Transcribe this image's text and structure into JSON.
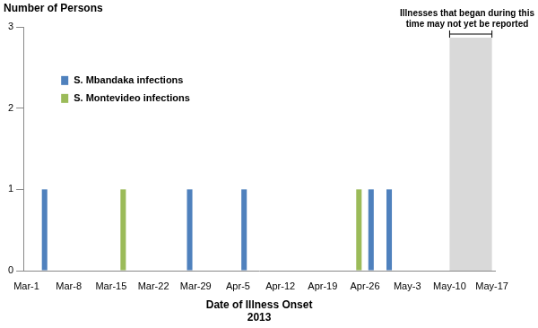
{
  "chart_data": {
    "type": "bar",
    "y_label": "Number of Persons",
    "x_label": "Date of Illness Onset\n2013",
    "categories": [
      "Mar-1",
      null,
      null,
      null,
      null,
      null,
      null,
      "Mar-8",
      null,
      null,
      null,
      null,
      null,
      null,
      "Mar-15",
      null,
      null,
      null,
      null,
      null,
      null,
      "Mar-22",
      null,
      null,
      null,
      null,
      null,
      null,
      "Mar-29",
      null,
      null,
      null,
      null,
      null,
      null,
      "Apr-5",
      null,
      null,
      null,
      null,
      null,
      null,
      "Apr-12",
      null,
      null,
      null,
      null,
      null,
      null,
      "Apr-19",
      null,
      null,
      null,
      null,
      null,
      null,
      "Apr-26",
      null,
      null,
      null,
      null,
      null,
      null,
      "May-3",
      null,
      null,
      null,
      null,
      null,
      null,
      "May-10",
      null,
      null,
      null,
      null,
      null,
      null,
      "May-17"
    ],
    "series": [
      {
        "name": "S. Mbandaka infections",
        "color": "#4f81bd",
        "values": [
          0,
          0,
          0,
          1,
          0,
          0,
          0,
          0,
          0,
          0,
          0,
          0,
          0,
          0,
          0,
          0,
          0,
          0,
          0,
          0,
          0,
          0,
          0,
          0,
          0,
          0,
          0,
          1,
          0,
          0,
          0,
          0,
          0,
          0,
          0,
          0,
          1,
          0,
          0,
          0,
          0,
          0,
          0,
          0,
          0,
          0,
          0,
          0,
          0,
          0,
          0,
          0,
          0,
          0,
          0,
          0,
          0,
          1,
          0,
          0,
          1,
          0,
          0,
          0,
          0,
          0,
          0,
          0,
          0,
          0,
          0,
          0,
          0,
          0,
          0,
          0,
          0,
          0
        ]
      },
      {
        "name": "S. Montevideo infections",
        "color": "#9bbb59",
        "values": [
          0,
          0,
          0,
          0,
          0,
          0,
          0,
          0,
          0,
          0,
          0,
          0,
          0,
          0,
          0,
          0,
          1,
          0,
          0,
          0,
          0,
          0,
          0,
          0,
          0,
          0,
          0,
          0,
          0,
          0,
          0,
          0,
          0,
          0,
          0,
          0,
          0,
          0,
          0,
          0,
          0,
          0,
          0,
          0,
          0,
          0,
          0,
          0,
          0,
          0,
          0,
          0,
          0,
          0,
          0,
          1,
          0,
          0,
          0,
          0,
          0,
          0,
          0,
          0,
          0,
          0,
          0,
          0,
          0,
          0,
          0,
          0,
          0,
          0,
          0,
          0,
          0,
          0
        ]
      }
    ],
    "ylim": [
      0,
      3
    ],
    "yticks": [
      0,
      1,
      2,
      3
    ],
    "grid": false,
    "legend": "upper left",
    "annotations": [
      {
        "text": "Illnesses that began during this time may not yet be reported",
        "x_start": "May-10",
        "x_end": "May-17"
      }
    ]
  }
}
